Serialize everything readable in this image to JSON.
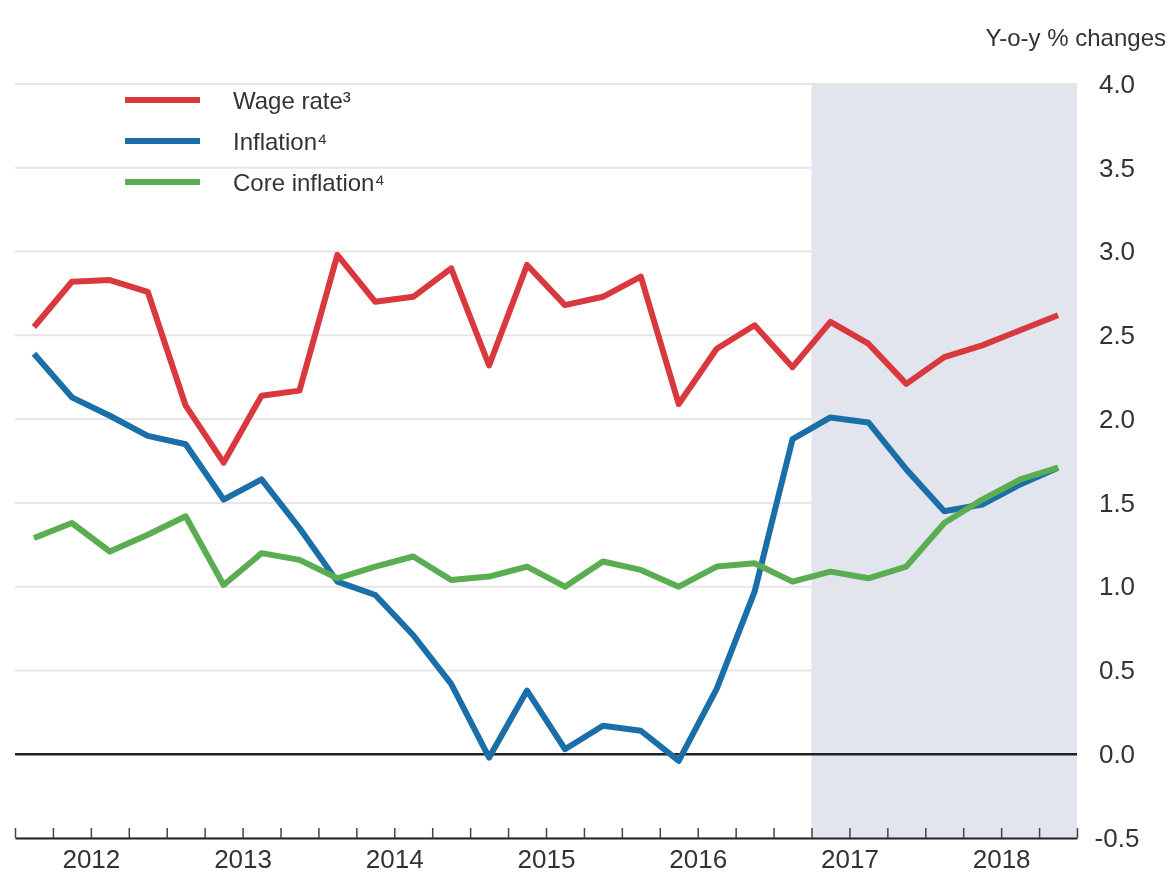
{
  "chart_data": {
    "type": "line",
    "ylabel": "Y-o-y % changes",
    "x": [
      2012.125,
      2012.375,
      2012.625,
      2012.875,
      2013.125,
      2013.375,
      2013.625,
      2013.875,
      2014.125,
      2014.375,
      2014.625,
      2014.875,
      2015.125,
      2015.375,
      2015.625,
      2015.875,
      2016.125,
      2016.375,
      2016.625,
      2016.875,
      2017.125,
      2017.375,
      2017.625,
      2017.875,
      2018.125,
      2018.375,
      2018.625,
      2018.875
    ],
    "series": [
      {
        "name": "Wage rate³",
        "color": "#d9383f",
        "values": [
          2.55,
          2.82,
          2.83,
          2.76,
          2.08,
          1.74,
          2.14,
          2.17,
          2.98,
          2.7,
          2.73,
          2.9,
          2.32,
          2.92,
          2.68,
          2.73,
          2.85,
          2.09,
          2.42,
          2.56,
          2.31,
          2.58,
          2.45,
          2.21,
          2.37,
          2.44,
          2.53,
          2.62
        ]
      },
      {
        "name": "Inflation⁴",
        "color": "#1a6fa8",
        "values": [
          2.39,
          2.13,
          2.02,
          1.9,
          1.85,
          1.52,
          1.64,
          1.35,
          1.03,
          0.95,
          0.71,
          0.42,
          -0.02,
          0.38,
          0.03,
          0.17,
          0.14,
          -0.04,
          0.39,
          0.97,
          1.88,
          2.01,
          1.98,
          1.7,
          1.45,
          1.49,
          1.61,
          1.71
        ]
      },
      {
        "name": "Core inflation⁴",
        "color": "#5aad50",
        "values": [
          1.29,
          1.38,
          1.21,
          1.31,
          1.42,
          1.01,
          1.2,
          1.16,
          1.05,
          1.12,
          1.18,
          1.04,
          1.06,
          1.12,
          1.0,
          1.15,
          1.1,
          1.0,
          1.12,
          1.14,
          1.03,
          1.09,
          1.05,
          1.12,
          1.38,
          1.52,
          1.64,
          1.71
        ]
      }
    ],
    "xlim": [
      2012,
      2019
    ],
    "xticks": [
      {
        "value": 2012,
        "label": null
      },
      {
        "value": 2012.25,
        "label": null
      },
      {
        "value": 2012.5,
        "label": "2012"
      },
      {
        "value": 2012.75,
        "label": null
      },
      {
        "value": 2013,
        "label": null
      },
      {
        "value": 2013.25,
        "label": null
      },
      {
        "value": 2013.5,
        "label": "2013"
      },
      {
        "value": 2013.75,
        "label": null
      },
      {
        "value": 2014,
        "label": null
      },
      {
        "value": 2014.25,
        "label": null
      },
      {
        "value": 2014.5,
        "label": "2014"
      },
      {
        "value": 2014.75,
        "label": null
      },
      {
        "value": 2015,
        "label": null
      },
      {
        "value": 2015.25,
        "label": null
      },
      {
        "value": 2015.5,
        "label": "2015"
      },
      {
        "value": 2015.75,
        "label": null
      },
      {
        "value": 2016,
        "label": null
      },
      {
        "value": 2016.25,
        "label": null
      },
      {
        "value": 2016.5,
        "label": "2016"
      },
      {
        "value": 2016.75,
        "label": null
      },
      {
        "value": 2017,
        "label": null
      },
      {
        "value": 2017.25,
        "label": null
      },
      {
        "value": 2017.5,
        "label": "2017"
      },
      {
        "value": 2017.75,
        "label": null
      },
      {
        "value": 2018,
        "label": null
      },
      {
        "value": 2018.25,
        "label": null
      },
      {
        "value": 2018.5,
        "label": "2018"
      },
      {
        "value": 2018.75,
        "label": null
      },
      {
        "value": 2019,
        "label": null
      }
    ],
    "ylim": [
      -0.5,
      4.0
    ],
    "yticks": [
      {
        "value": -0.5,
        "label": "-0.5"
      },
      {
        "value": 0,
        "label": "0.0"
      },
      {
        "value": 0.5,
        "label": "0.5"
      },
      {
        "value": 1,
        "label": "1.0"
      },
      {
        "value": 1.5,
        "label": "1.5"
      },
      {
        "value": 2,
        "label": "2.0"
      },
      {
        "value": 2.5,
        "label": "2.5"
      },
      {
        "value": 3,
        "label": "3.0"
      },
      {
        "value": 3.5,
        "label": "3.5"
      },
      {
        "value": 4,
        "label": "4.0"
      }
    ],
    "grid": "y",
    "ref_lines": [
      {
        "axis": "y",
        "value": 0,
        "color": "#222222"
      }
    ],
    "bands": [
      {
        "axis": "x",
        "from": 2017.25,
        "to": 2019,
        "color": "#e2e5ee"
      }
    ],
    "legend": "top left",
    "line_style": "solid",
    "marker": "none"
  }
}
